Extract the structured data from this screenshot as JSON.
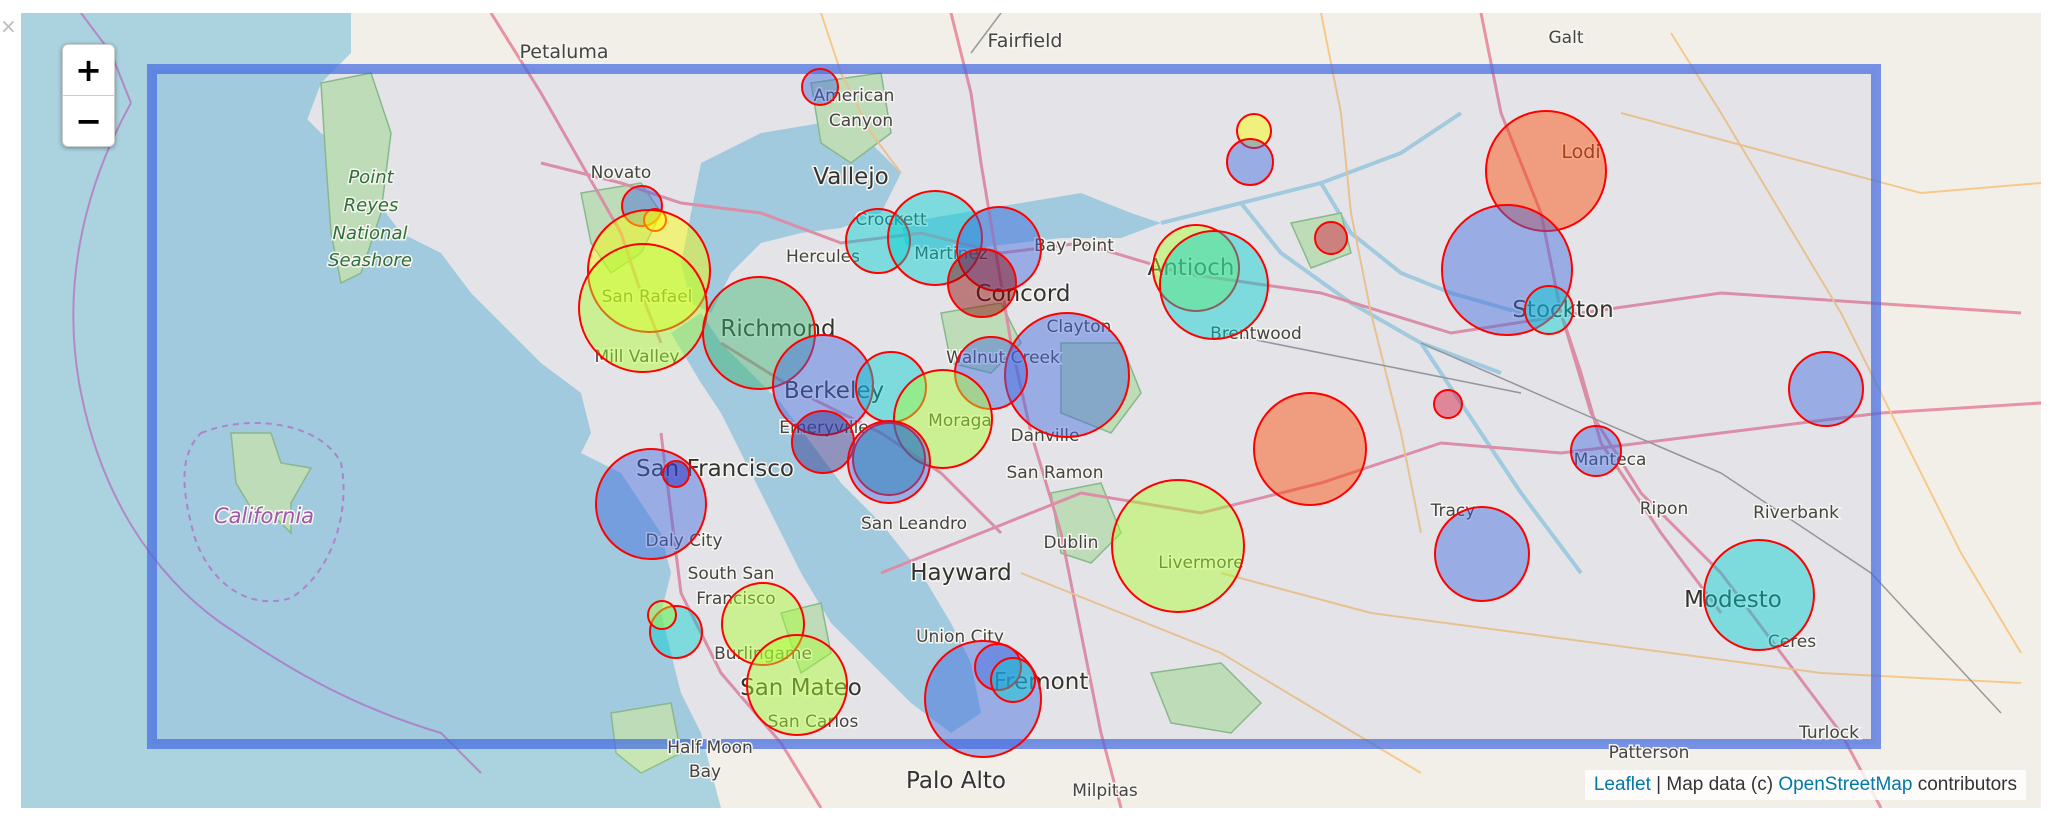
{
  "controls": {
    "zoom_in": "+",
    "zoom_out": "−"
  },
  "attribution": {
    "leaflet": "Leaflet",
    "separator": " | Map data (c) ",
    "osm": "OpenStreetMap",
    "suffix": " contributors"
  },
  "corner_mark": "×",
  "colors": {
    "extent_rectangle": "#4169e1",
    "marker_stroke": "#ff0000",
    "water": "#aad3df",
    "land": "#f2efe9",
    "park": "#c8e6b4"
  },
  "places": [
    {
      "name": "Petaluma",
      "size": "med"
    },
    {
      "name": "Fairfield",
      "size": "med"
    },
    {
      "name": "Galt",
      "size": "small"
    },
    {
      "name": "American",
      "size": "small"
    },
    {
      "name": "Canyon",
      "size": "small"
    },
    {
      "name": "Vallejo",
      "size": "big"
    },
    {
      "name": "Novato",
      "size": "small"
    },
    {
      "name": "Point",
      "size": "park"
    },
    {
      "name": "Reyes",
      "size": "park"
    },
    {
      "name": "National",
      "size": "park"
    },
    {
      "name": "Seashore",
      "size": "park"
    },
    {
      "name": "Lodi",
      "size": "med"
    },
    {
      "name": "Crockett",
      "size": "small"
    },
    {
      "name": "Hercules",
      "size": "small"
    },
    {
      "name": "Martinez",
      "size": "small"
    },
    {
      "name": "Bay Point",
      "size": "small"
    },
    {
      "name": "Antioch",
      "size": "big"
    },
    {
      "name": "Concord",
      "size": "big"
    },
    {
      "name": "San Rafael",
      "size": "small"
    },
    {
      "name": "Stockton",
      "size": "big"
    },
    {
      "name": "Richmond",
      "size": "big"
    },
    {
      "name": "Clayton",
      "size": "small"
    },
    {
      "name": "Brentwood",
      "size": "small"
    },
    {
      "name": "Mill Valley",
      "size": "small"
    },
    {
      "name": "Walnut Creek",
      "size": "small"
    },
    {
      "name": "Berkeley",
      "size": "big"
    },
    {
      "name": "Emeryville",
      "size": "small"
    },
    {
      "name": "Moraga",
      "size": "small"
    },
    {
      "name": "Danville",
      "size": "small"
    },
    {
      "name": "Manteca",
      "size": "small"
    },
    {
      "name": "San Francisco",
      "size": "big"
    },
    {
      "name": "San Ramon",
      "size": "small"
    },
    {
      "name": "Tracy",
      "size": "small"
    },
    {
      "name": "Ripon",
      "size": "small"
    },
    {
      "name": "Riverbank",
      "size": "small"
    },
    {
      "name": "California",
      "size": "ca"
    },
    {
      "name": "San Leandro",
      "size": "small"
    },
    {
      "name": "Daly City",
      "size": "small"
    },
    {
      "name": "Dublin",
      "size": "small"
    },
    {
      "name": "Livermore",
      "size": "small"
    },
    {
      "name": "South San",
      "size": "small"
    },
    {
      "name": "Hayward",
      "size": "big"
    },
    {
      "name": "Francisco",
      "size": "small"
    },
    {
      "name": "Modesto",
      "size": "big"
    },
    {
      "name": "Union City",
      "size": "small"
    },
    {
      "name": "Ceres",
      "size": "small"
    },
    {
      "name": "Burlingame",
      "size": "small"
    },
    {
      "name": "Fremont",
      "size": "big"
    },
    {
      "name": "San Mateo",
      "size": "big"
    },
    {
      "name": "San Carlos",
      "size": "small"
    },
    {
      "name": "Half Moon",
      "size": "small"
    },
    {
      "name": "Turlock",
      "size": "small"
    },
    {
      "name": "Patterson",
      "size": "small"
    },
    {
      "name": "Bay",
      "size": "small"
    },
    {
      "name": "Palo Alto",
      "size": "big"
    },
    {
      "name": "Milpitas",
      "size": "small"
    }
  ],
  "markers": [
    {
      "color": "#4169e1"
    },
    {
      "color": "#ffff00"
    },
    {
      "color": "#4169e1"
    },
    {
      "color": "#ff4500"
    },
    {
      "color": "#4169e1"
    },
    {
      "color": "#ffff00"
    },
    {
      "color": "#ffff00"
    },
    {
      "color": "#adff2f"
    },
    {
      "color": "#00ced1"
    },
    {
      "color": "#00ced1"
    },
    {
      "color": "#4169e1"
    },
    {
      "color": "#8b0000"
    },
    {
      "color": "#adff2f"
    },
    {
      "color": "#00ced1"
    },
    {
      "color": "#dc143c"
    },
    {
      "color": "#4169e1"
    },
    {
      "color": "#00ced1"
    },
    {
      "color": "#3cb371"
    },
    {
      "color": "#4169e1"
    },
    {
      "color": "#00ced1"
    },
    {
      "color": "#4169e1"
    },
    {
      "color": "#4169e1"
    },
    {
      "color": "#adff2f"
    },
    {
      "color": "#4169e1"
    },
    {
      "color": "#ff4500"
    },
    {
      "color": "#4169e1"
    },
    {
      "color": "#dc143c"
    },
    {
      "color": "#4169e1"
    },
    {
      "color": "#2e2e8b"
    },
    {
      "color": "#008b8b"
    },
    {
      "color": "#4169e1"
    },
    {
      "color": "#1e1eb4"
    },
    {
      "color": "#adff2f"
    },
    {
      "color": "#4169e1"
    },
    {
      "color": "#4169e1"
    },
    {
      "color": "#00ced1"
    },
    {
      "color": "#00ced1"
    },
    {
      "color": "#adff2f"
    },
    {
      "color": "#adff2f"
    },
    {
      "color": "#4169e1"
    },
    {
      "color": "#adff2f"
    },
    {
      "color": "#00ced1"
    }
  ]
}
